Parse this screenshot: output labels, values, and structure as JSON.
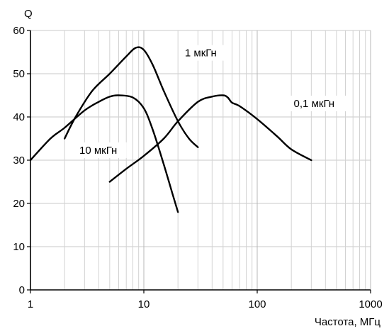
{
  "chart_data": {
    "type": "line",
    "title": "",
    "xlabel": "Частота, МГц",
    "ylabel": "Q",
    "xscale": "log",
    "xlim": [
      1,
      1000
    ],
    "ylim": [
      0,
      60
    ],
    "grid": true,
    "x_ticks": [
      1,
      10,
      100,
      1000
    ],
    "x_tick_labels": [
      "1",
      "10",
      "100",
      "1000"
    ],
    "y_ticks": [
      0,
      10,
      20,
      30,
      40,
      50,
      60
    ],
    "y_tick_labels": [
      "0",
      "10",
      "20",
      "30",
      "40",
      "50",
      "60"
    ],
    "series": [
      {
        "name": "1 мкГн",
        "points": [
          [
            2,
            35
          ],
          [
            2.5,
            40
          ],
          [
            3.5,
            46
          ],
          [
            5,
            50
          ],
          [
            7,
            54
          ],
          [
            8.5,
            56
          ],
          [
            10,
            55.5
          ],
          [
            12,
            52
          ],
          [
            15,
            46
          ],
          [
            20,
            39
          ],
          [
            25,
            35
          ],
          [
            30,
            33
          ]
        ]
      },
      {
        "name": "10 мкГн",
        "points": [
          [
            1,
            30
          ],
          [
            1.5,
            35
          ],
          [
            2,
            37.5
          ],
          [
            3,
            41.5
          ],
          [
            4,
            43.5
          ],
          [
            5,
            44.7
          ],
          [
            6,
            45
          ],
          [
            8,
            44.5
          ],
          [
            10,
            42
          ],
          [
            12,
            37
          ],
          [
            15,
            29
          ],
          [
            18,
            22
          ],
          [
            20,
            18
          ]
        ]
      },
      {
        "name": "0,1 мкГн",
        "points": [
          [
            5,
            25
          ],
          [
            7,
            28
          ],
          [
            10,
            31
          ],
          [
            15,
            35
          ],
          [
            20,
            39
          ],
          [
            30,
            43.5
          ],
          [
            40,
            44.7
          ],
          [
            50,
            45
          ],
          [
            55,
            44.5
          ],
          [
            60,
            43.3
          ],
          [
            70,
            42.5
          ],
          [
            100,
            39.5
          ],
          [
            150,
            35.5
          ],
          [
            200,
            32.5
          ],
          [
            300,
            30
          ]
        ]
      }
    ],
    "annotations": [
      {
        "text": "1 мкГн",
        "series": "1 мкГн",
        "x": 23,
        "y": 54
      },
      {
        "text": "10 мкГн",
        "series": "10 мкГн",
        "x": 2.7,
        "y": 31.5
      },
      {
        "text": "0,1 мкГн",
        "series": "0,1 мкГн",
        "x": 210,
        "y": 42.3
      }
    ]
  }
}
